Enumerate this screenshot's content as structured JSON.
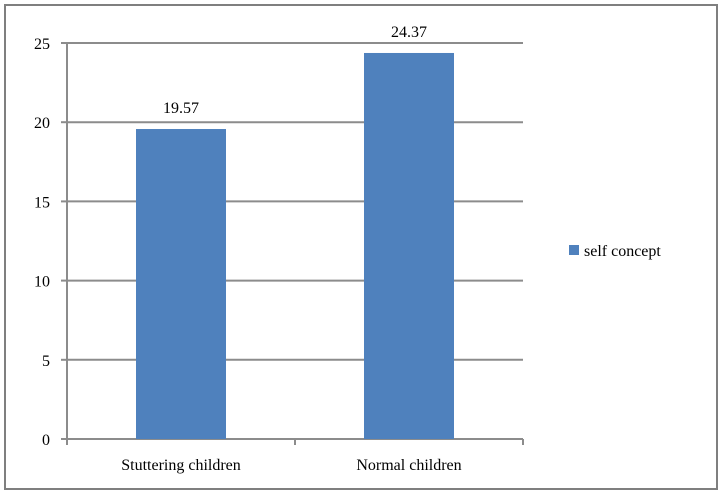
{
  "chart_data": {
    "type": "bar",
    "categories": [
      "Stuttering children",
      "Normal children"
    ],
    "series": [
      {
        "name": "self concept",
        "values": [
          19.57,
          24.37
        ],
        "color": "#4f81bd"
      }
    ],
    "data_labels": [
      "19.57",
      "24.37"
    ],
    "ylim": [
      0,
      25
    ],
    "yticks": [
      0,
      5,
      10,
      15,
      20,
      25
    ],
    "grid": true,
    "legend": "right",
    "title": "",
    "xlabel": "",
    "ylabel": ""
  }
}
